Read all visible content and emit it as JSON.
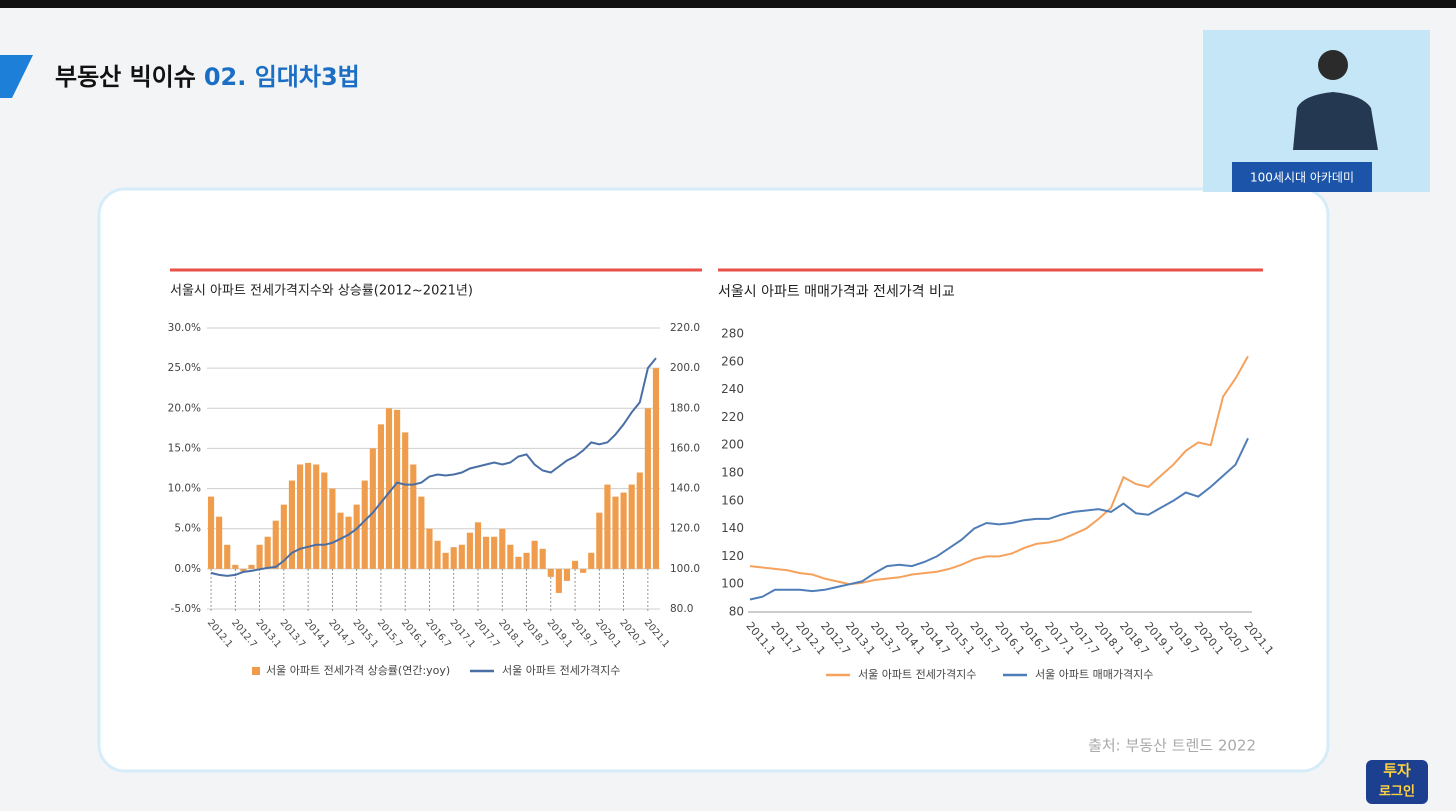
{
  "header": {
    "title_prefix": "부동산 빅이슈",
    "title_highlight": "02. 임대차3법"
  },
  "video": {
    "caption": "100세시대 아카데미"
  },
  "logo": [
    "투자",
    "로그인"
  ],
  "source": "출처: 부동산 트렌드 2022",
  "chart_data": [
    {
      "type": "combo",
      "title": "서울시 아파트 전세가격지수와 상승률(2012~2021년)",
      "categories": [
        "2012.1",
        null,
        null,
        "2012.7",
        null,
        null,
        "2013.1",
        null,
        null,
        "2013.7",
        null,
        null,
        "2014.1",
        null,
        null,
        "2014.7",
        null,
        null,
        "2015.1",
        null,
        null,
        "2015.7",
        null,
        null,
        "2016.1",
        null,
        null,
        "2016.7",
        null,
        null,
        "2017.1",
        null,
        null,
        "2017.7",
        null,
        null,
        "2018.1",
        null,
        null,
        "2018.7",
        null,
        null,
        "2019.1",
        null,
        null,
        "2019.7",
        null,
        null,
        "2020.1",
        null,
        null,
        "2020.7",
        null,
        null,
        "2021.1",
        null
      ],
      "series": [
        {
          "name": "서울 아파트 전세가격 상승률(연간:yoy)",
          "type": "bar",
          "color": "#ef9d4c",
          "values": [
            9,
            6.5,
            3,
            0.5,
            -0.3,
            0.5,
            3,
            4,
            6,
            8,
            11,
            13,
            13.2,
            13,
            12,
            10,
            7,
            6.5,
            8,
            11,
            15,
            18,
            20,
            19.8,
            17,
            13,
            9,
            5,
            3.5,
            2,
            2.7,
            3,
            4.5,
            5.8,
            4,
            4,
            5,
            3,
            1.5,
            2,
            3.5,
            2.5,
            -1,
            -3,
            -1.5,
            1,
            -0.5,
            2,
            7,
            10.5,
            9,
            9.5,
            10.5,
            12,
            20,
            25
          ]
        },
        {
          "name": "서울 아파트 전세가격지수",
          "type": "line",
          "axis": "y2",
          "color": "#4a6fa5",
          "values": [
            98,
            97,
            96.5,
            97,
            98.5,
            99,
            99.8,
            100.5,
            101,
            104,
            108,
            110,
            111,
            112,
            112,
            113,
            115,
            117,
            120,
            124,
            128,
            133,
            138,
            143,
            142,
            142,
            143,
            146,
            147,
            146.5,
            147,
            148,
            150,
            151,
            152,
            153,
            152,
            153,
            156,
            157,
            152,
            149,
            148,
            151,
            154,
            156,
            159,
            163,
            162,
            163,
            167,
            172,
            178,
            183,
            200,
            205
          ]
        }
      ],
      "ylim": [
        -5,
        30
      ],
      "yticks": [
        {
          "value": -5,
          "label": "-5.0%"
        },
        {
          "value": 0,
          "label": "0.0%"
        },
        {
          "value": 5,
          "label": "5.0%"
        },
        {
          "value": 10,
          "label": "10.0%"
        },
        {
          "value": 15,
          "label": "15.0%"
        },
        {
          "value": 20,
          "label": "20.0%"
        },
        {
          "value": 25,
          "label": "25.0%"
        },
        {
          "value": 30,
          "label": "30.0%"
        }
      ],
      "y2lim": [
        80,
        220
      ],
      "y2ticks": [
        {
          "value": 80,
          "label": "80.0"
        },
        {
          "value": 100,
          "label": "100.0"
        },
        {
          "value": 120,
          "label": "120.0"
        },
        {
          "value": 140,
          "label": "140.0"
        },
        {
          "value": 160,
          "label": "160.0"
        },
        {
          "value": 180,
          "label": "180.0"
        },
        {
          "value": 200,
          "label": "200.0"
        },
        {
          "value": 220,
          "label": "220.0"
        }
      ],
      "grid": true
    },
    {
      "type": "line",
      "title": "서울시 아파트 매매가격과 전세가격 비교",
      "categories": [
        "2011.1",
        null,
        "2011.7",
        null,
        "2012.1",
        null,
        "2012.7",
        null,
        "2013.1",
        null,
        "2013.7",
        null,
        "2014.1",
        null,
        "2014.7",
        null,
        "2015.1",
        null,
        "2015.7",
        null,
        "2016.1",
        null,
        "2016.7",
        null,
        "2017.1",
        null,
        "2017.7",
        null,
        "2018.1",
        null,
        "2018.7",
        null,
        "2019.1",
        null,
        "2019.7",
        null,
        "2020.1",
        null,
        "2020.7",
        null,
        "2021.1"
      ],
      "series": [
        {
          "name": "서울 아파트 전세가격지수",
          "color": "#f5a25d",
          "values": [
            113,
            112,
            111,
            110,
            108,
            107,
            104,
            102,
            100,
            101,
            103,
            104,
            105,
            107,
            108,
            109,
            111,
            114,
            118,
            120,
            120,
            122,
            126,
            129,
            130,
            132,
            136,
            140,
            147,
            155,
            177,
            172,
            170,
            178,
            186,
            196,
            202,
            200,
            235,
            248,
            264
          ]
        },
        {
          "name": "서울 아파트 매매가격지수",
          "color": "#4f7db8",
          "values": [
            89,
            91,
            96,
            96,
            96,
            95,
            96,
            98,
            100,
            102,
            108,
            113,
            114,
            113,
            116,
            120,
            126,
            132,
            140,
            144,
            143,
            144,
            146,
            147,
            147,
            150,
            152,
            153,
            154,
            152,
            158,
            151,
            150,
            155,
            160,
            166,
            163,
            170,
            178,
            186,
            205
          ]
        }
      ],
      "ylim": [
        80,
        280
      ],
      "yticks": [
        80,
        100,
        120,
        140,
        160,
        180,
        200,
        220,
        240,
        260,
        280
      ],
      "grid": false
    }
  ]
}
